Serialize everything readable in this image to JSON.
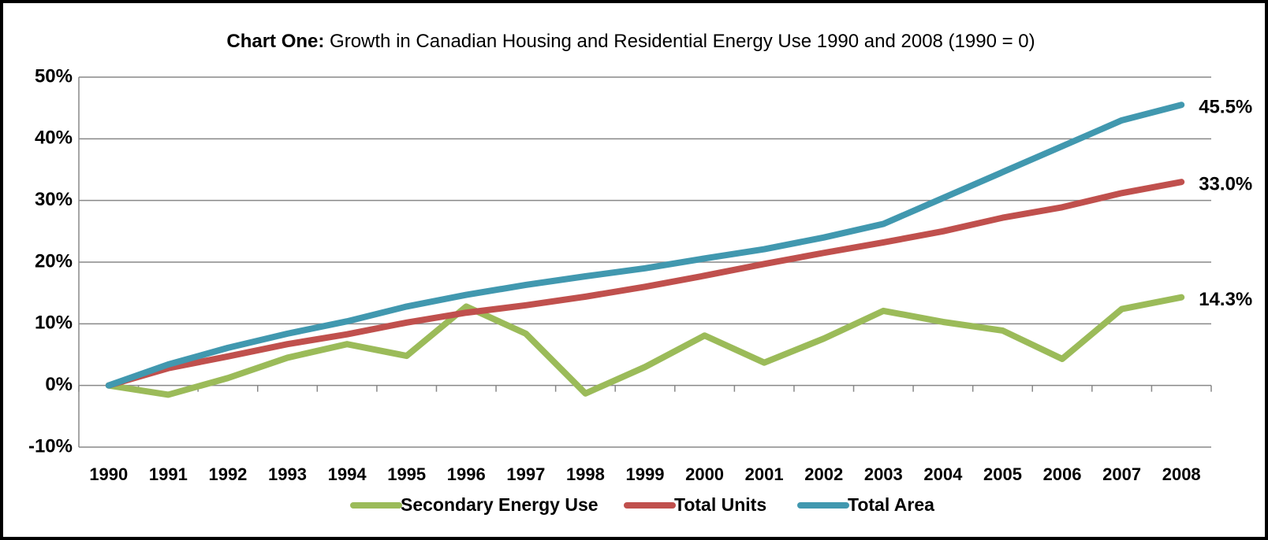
{
  "chart_data": {
    "type": "line",
    "title_lead": "Chart One:",
    "title": "Growth in Canadian Housing and Residential Energy Use 1990 and 2008  (1990 = 0)",
    "categories": [
      "1990",
      "1991",
      "1992",
      "1993",
      "1994",
      "1995",
      "1996",
      "1997",
      "1998",
      "1999",
      "2000",
      "2001",
      "2002",
      "2003",
      "2004",
      "2005",
      "2006",
      "2007",
      "2008"
    ],
    "series": [
      {
        "name": "Secondary Energy Use",
        "color": "#9bbb59",
        "values": [
          0,
          -1.5,
          1.2,
          4.5,
          6.7,
          4.8,
          12.8,
          8.4,
          -1.3,
          3.0,
          8.1,
          3.7,
          7.6,
          12.1,
          10.3,
          8.9,
          4.3,
          12.4,
          14.3
        ],
        "value_labels": [
          null,
          null,
          null,
          null,
          null,
          null,
          null,
          null,
          null,
          null,
          null,
          null,
          null,
          null,
          null,
          null,
          null,
          null,
          "14.3%"
        ]
      },
      {
        "name": "Total Units",
        "color": "#c0504d",
        "values": [
          0,
          2.8,
          4.7,
          6.7,
          8.3,
          10.2,
          11.8,
          13.0,
          14.4,
          16.0,
          17.8,
          19.7,
          21.5,
          23.2,
          25.0,
          27.2,
          28.9,
          31.2,
          33.0
        ],
        "value_labels": [
          null,
          null,
          null,
          null,
          null,
          null,
          null,
          null,
          null,
          null,
          null,
          null,
          null,
          null,
          null,
          null,
          null,
          null,
          "33.0%"
        ]
      },
      {
        "name": "Total Area",
        "color": "#4198af",
        "values": [
          0,
          3.4,
          6.1,
          8.4,
          10.4,
          12.8,
          14.7,
          16.3,
          17.7,
          19.0,
          20.6,
          22.1,
          24.0,
          26.2,
          30.4,
          34.6,
          38.8,
          43.0,
          45.5
        ],
        "value_labels": [
          null,
          null,
          null,
          null,
          null,
          null,
          null,
          null,
          null,
          null,
          null,
          null,
          null,
          null,
          null,
          null,
          null,
          null,
          "45.5%"
        ]
      }
    ],
    "ylim": [
      -10,
      50
    ],
    "yticks": [
      {
        "value": -10,
        "label": "-10%"
      },
      {
        "value": 0,
        "label": "0%"
      },
      {
        "value": 10,
        "label": "10%"
      },
      {
        "value": 20,
        "label": "20%"
      },
      {
        "value": 30,
        "label": "30%"
      },
      {
        "value": 40,
        "label": "40%"
      },
      {
        "value": 50,
        "label": "50%"
      }
    ],
    "grid": true,
    "legend": "bottom"
  }
}
